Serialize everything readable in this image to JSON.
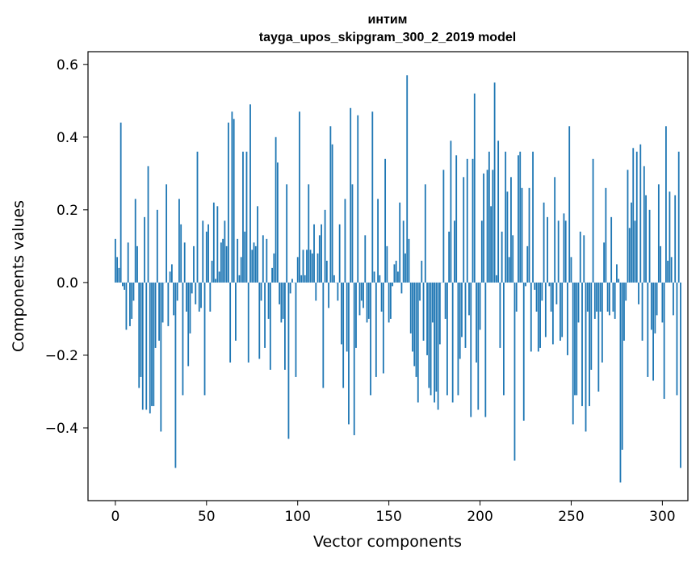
{
  "chart_data": {
    "type": "bar",
    "title": "интим",
    "subtitle": "tayga_upos_skipgram_300_2_2019 model",
    "xlabel": "Vector components",
    "ylabel": "Components values",
    "xlim": [
      -15,
      314
    ],
    "ylim": [
      -0.6,
      0.635
    ],
    "xticks": [
      0,
      50,
      100,
      150,
      200,
      250,
      300
    ],
    "yticks": [
      -0.4,
      -0.2,
      0.0,
      0.2,
      0.4,
      0.6
    ],
    "xtick_labels": [
      "0",
      "50",
      "100",
      "150",
      "200",
      "250",
      "300"
    ],
    "ytick_labels": [
      "−0.4",
      "−0.2",
      "0.0",
      "0.2",
      "0.4",
      "0.6"
    ],
    "bar_color": "#1f77b4",
    "values": [
      0.12,
      0.07,
      0.04,
      0.44,
      -0.01,
      -0.02,
      -0.13,
      0.11,
      -0.12,
      -0.1,
      -0.05,
      0.23,
      0.1,
      -0.29,
      -0.26,
      -0.35,
      0.18,
      -0.35,
      0.32,
      -0.36,
      -0.34,
      -0.34,
      -0.18,
      0.2,
      -0.16,
      -0.41,
      -0.11,
      0.0,
      0.27,
      -0.12,
      0.03,
      0.05,
      -0.09,
      -0.51,
      -0.05,
      0.23,
      0.16,
      -0.31,
      0.11,
      -0.08,
      -0.23,
      -0.14,
      -0.03,
      0.1,
      -0.06,
      0.36,
      -0.08,
      -0.07,
      0.17,
      -0.31,
      0.14,
      0.16,
      -0.08,
      0.06,
      0.22,
      0.01,
      0.21,
      0.03,
      0.11,
      0.12,
      0.17,
      0.1,
      0.44,
      -0.22,
      0.47,
      0.45,
      -0.16,
      0.12,
      0.02,
      0.07,
      0.36,
      0.14,
      0.36,
      -0.22,
      0.49,
      0.09,
      0.11,
      0.1,
      0.21,
      -0.21,
      -0.05,
      0.13,
      -0.18,
      0.12,
      -0.1,
      -0.24,
      0.04,
      0.08,
      0.4,
      0.33,
      -0.06,
      -0.11,
      -0.1,
      -0.24,
      0.27,
      -0.43,
      -0.03,
      0.01,
      0.0,
      -0.26,
      0.07,
      0.47,
      0.02,
      0.09,
      0.02,
      0.09,
      0.27,
      0.09,
      0.08,
      0.16,
      -0.05,
      0.08,
      0.13,
      0.16,
      -0.29,
      0.2,
      0.06,
      -0.07,
      0.43,
      0.38,
      0.02,
      0.0,
      -0.05,
      0.16,
      -0.17,
      -0.29,
      0.23,
      -0.19,
      -0.39,
      0.48,
      0.27,
      -0.42,
      -0.18,
      0.46,
      -0.09,
      -0.05,
      -0.07,
      0.13,
      -0.11,
      -0.1,
      -0.31,
      0.47,
      0.03,
      -0.26,
      0.23,
      0.02,
      -0.08,
      -0.25,
      0.34,
      0.1,
      -0.11,
      -0.1,
      -0.01,
      0.05,
      0.06,
      0.03,
      0.22,
      -0.03,
      0.17,
      0.08,
      0.57,
      0.12,
      -0.14,
      -0.19,
      -0.23,
      -0.26,
      -0.33,
      -0.05,
      0.06,
      -0.16,
      0.27,
      -0.2,
      -0.29,
      -0.31,
      -0.11,
      -0.33,
      -0.3,
      -0.35,
      -0.17,
      0.0,
      0.31,
      -0.1,
      -0.31,
      0.14,
      0.39,
      -0.33,
      0.17,
      0.35,
      -0.31,
      -0.21,
      -0.15,
      0.29,
      -0.18,
      0.34,
      -0.09,
      -0.37,
      0.34,
      0.52,
      -0.22,
      -0.35,
      -0.13,
      0.17,
      0.3,
      -0.37,
      0.31,
      0.36,
      0.21,
      0.31,
      0.55,
      0.02,
      0.39,
      -0.18,
      0.14,
      -0.31,
      0.36,
      0.25,
      0.07,
      0.29,
      0.13,
      -0.49,
      -0.08,
      0.35,
      0.36,
      0.26,
      -0.38,
      -0.01,
      0.1,
      0.26,
      -0.19,
      0.36,
      -0.02,
      -0.08,
      -0.19,
      -0.18,
      -0.05,
      0.22,
      -0.15,
      0.18,
      -0.01,
      -0.08,
      -0.17,
      0.29,
      -0.06,
      0.17,
      -0.16,
      -0.15,
      0.19,
      0.17,
      -0.2,
      0.43,
      0.07,
      -0.39,
      -0.31,
      -0.31,
      -0.11,
      0.14,
      -0.34,
      0.13,
      -0.41,
      -0.08,
      -0.34,
      -0.24,
      0.34,
      -0.1,
      -0.08,
      -0.3,
      -0.08,
      -0.22,
      0.11,
      0.26,
      -0.08,
      -0.09,
      0.18,
      -0.08,
      -0.1,
      0.05,
      0.01,
      -0.55,
      -0.46,
      -0.16,
      -0.05,
      0.31,
      0.15,
      0.22,
      0.37,
      0.17,
      0.36,
      -0.06,
      0.38,
      -0.16,
      0.32,
      0.24,
      -0.26,
      0.2,
      -0.13,
      -0.27,
      -0.14,
      -0.09,
      0.27,
      0.1,
      -0.11,
      -0.32,
      0.43,
      0.06,
      0.25,
      0.07,
      -0.09,
      0.24,
      -0.31,
      0.36,
      -0.51
    ]
  }
}
